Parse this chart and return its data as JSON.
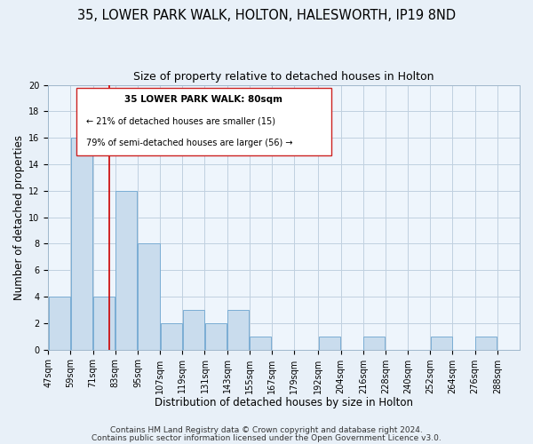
{
  "title": "35, LOWER PARK WALK, HOLTON, HALESWORTH, IP19 8ND",
  "subtitle": "Size of property relative to detached houses in Holton",
  "xlabel": "Distribution of detached houses by size in Holton",
  "ylabel": "Number of detached properties",
  "bin_edges": [
    47,
    59,
    71,
    83,
    95,
    107,
    119,
    131,
    143,
    155,
    167,
    179,
    192,
    204,
    216,
    228,
    240,
    252,
    264,
    276,
    288
  ],
  "bar_heights": [
    4,
    16,
    4,
    12,
    8,
    2,
    3,
    2,
    3,
    1,
    0,
    0,
    1,
    0,
    1,
    0,
    0,
    1,
    0,
    1
  ],
  "bar_color": "#c9dced",
  "bar_edge_color": "#7aadd4",
  "property_line_x": 80,
  "property_line_color": "#cc0000",
  "ylim": [
    0,
    20
  ],
  "yticks": [
    0,
    2,
    4,
    6,
    8,
    10,
    12,
    14,
    16,
    18,
    20
  ],
  "tick_labels": [
    "47sqm",
    "59sqm",
    "71sqm",
    "83sqm",
    "95sqm",
    "107sqm",
    "119sqm",
    "131sqm",
    "143sqm",
    "155sqm",
    "167sqm",
    "179sqm",
    "192sqm",
    "204sqm",
    "216sqm",
    "228sqm",
    "240sqm",
    "252sqm",
    "264sqm",
    "276sqm",
    "288sqm"
  ],
  "annotation_title": "35 LOWER PARK WALK: 80sqm",
  "annotation_line1": "← 21% of detached houses are smaller (15)",
  "annotation_line2": "79% of semi-detached houses are larger (56) →",
  "footer_line1": "Contains HM Land Registry data © Crown copyright and database right 2024.",
  "footer_line2": "Contains public sector information licensed under the Open Government Licence v3.0.",
  "bg_color": "#e8f0f8",
  "plot_bg_color": "#eef5fc",
  "grid_color": "#c0d0e0",
  "title_fontsize": 10.5,
  "subtitle_fontsize": 9,
  "axis_label_fontsize": 8.5,
  "tick_fontsize": 7,
  "footer_fontsize": 6.5
}
